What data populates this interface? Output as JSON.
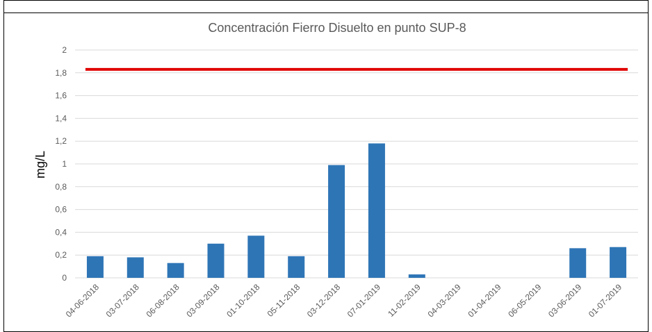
{
  "chart_data": {
    "type": "bar",
    "title": "Concentración Fierro Disuelto en punto SUP-8",
    "y_label": "mg/L",
    "categories": [
      "04-06-2018",
      "03-07-2018",
      "06-08-2018",
      "03-09-2018",
      "01-10-2018",
      "05-11-2018",
      "03-12-2018",
      "07-01-2019",
      "11-02-2019",
      "04-03-2019",
      "01-04-2019",
      "06-05-2019",
      "03-06-2019",
      "01-07-2019"
    ],
    "values": [
      0.19,
      0.18,
      0.13,
      0.3,
      0.37,
      0.19,
      0.99,
      1.18,
      0.03,
      0,
      0,
      0,
      0.26,
      0.27
    ],
    "color": "#2e75b6",
    "reference_line": {
      "value": 1.83,
      "color": "#e00000"
    },
    "ylim": [
      0,
      2
    ],
    "yticks": [
      0,
      {
        "value": 0.2,
        "label": "0,2"
      },
      {
        "value": 0.4,
        "label": "0,4"
      },
      {
        "value": 0.6,
        "label": "0,6"
      },
      {
        "value": 0.8,
        "label": "0,8"
      },
      1,
      {
        "value": 1.2,
        "label": "1,2"
      },
      {
        "value": 1.4,
        "label": "1,4"
      },
      {
        "value": 1.6,
        "label": "1,6"
      },
      {
        "value": 1.8,
        "label": "1,8"
      },
      2
    ],
    "grid": true
  }
}
